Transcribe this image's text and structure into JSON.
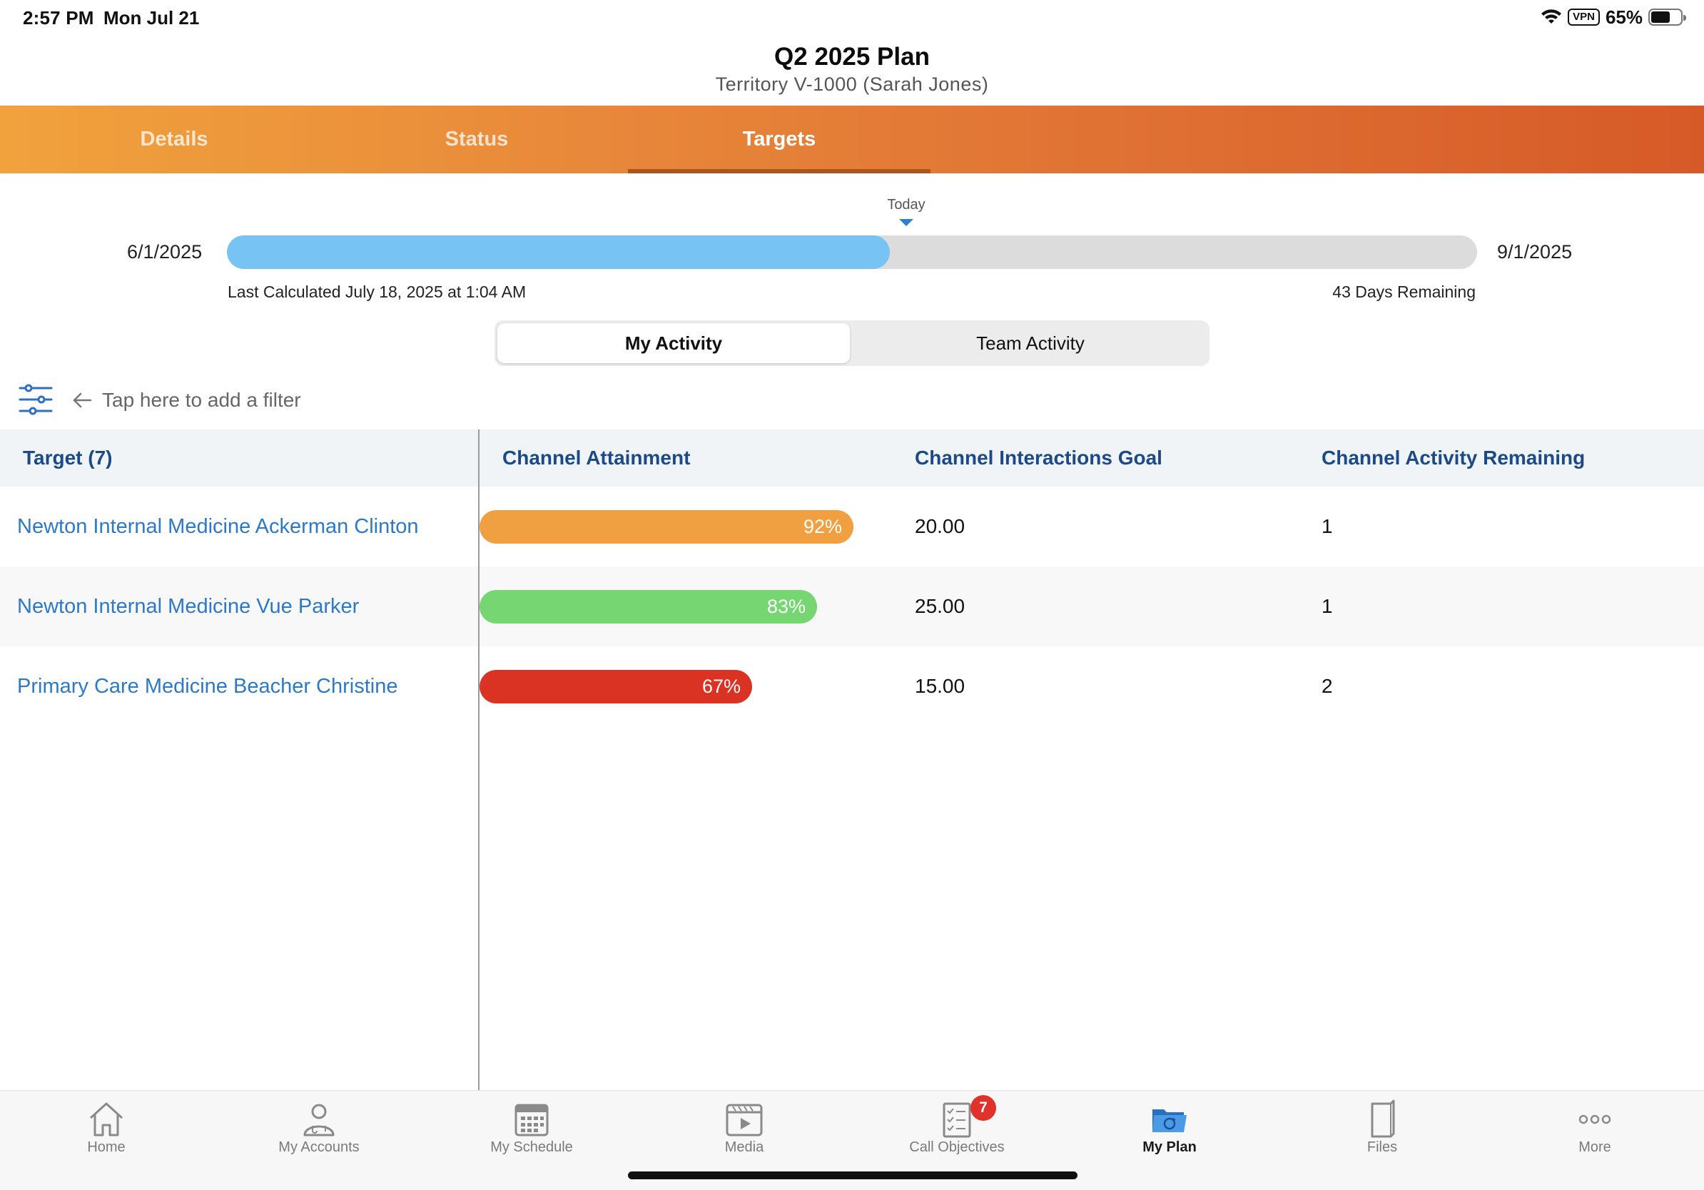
{
  "status_bar": {
    "time": "2:57 PM",
    "date": "Mon Jul 21",
    "vpn": "VPN",
    "battery": "65%",
    "battery_level": 0.65,
    "wifi_icon": "wifi-icon",
    "battery_icon": "battery-icon"
  },
  "header": {
    "title": "Q2 2025 Plan",
    "subtitle": "Territory V-1000 (Sarah Jones)"
  },
  "tabs": [
    {
      "label": "Details",
      "active": false
    },
    {
      "label": "Status",
      "active": false
    },
    {
      "label": "Targets",
      "active": true
    }
  ],
  "timeline": {
    "start_date": "6/1/2025",
    "end_date": "9/1/2025",
    "today_label": "Today",
    "progress_fraction": 0.53,
    "last_calculated": "Last Calculated July 18, 2025 at 1:04 AM",
    "days_remaining": "43 Days Remaining"
  },
  "segment": {
    "options": [
      "My Activity",
      "Team Activity"
    ],
    "selected": "My Activity"
  },
  "filter": {
    "hint": "Tap here to add a filter",
    "filter_icon": "sliders-icon",
    "arrow_icon": "arrow-left-icon"
  },
  "table": {
    "headers": {
      "target": "Target (7)",
      "attainment": "Channel Attainment",
      "goal": "Channel Interactions Goal",
      "remaining": "Channel Activity Remaining"
    },
    "rows": [
      {
        "name": "Newton Internal Medicine Ackerman Clinton",
        "attainment": "92%",
        "attainment_value": 92,
        "color": "#f0a040",
        "goal": "20.00",
        "remaining": "1"
      },
      {
        "name": "Newton Internal Medicine Vue Parker",
        "attainment": "83%",
        "attainment_value": 83,
        "color": "#76d672",
        "goal": "25.00",
        "remaining": "1"
      },
      {
        "name": "Primary Care Medicine Beacher Christine",
        "attainment": "67%",
        "attainment_value": 67,
        "color": "#db3323",
        "goal": "15.00",
        "remaining": "2"
      }
    ]
  },
  "bottom_nav": [
    {
      "label": "Home",
      "icon": "home-icon",
      "active": false
    },
    {
      "label": "My Accounts",
      "icon": "person-icon",
      "active": false
    },
    {
      "label": "My Schedule",
      "icon": "calendar-icon",
      "active": false
    },
    {
      "label": "Media",
      "icon": "media-icon",
      "active": false
    },
    {
      "label": "Call Objectives",
      "icon": "checklist-icon",
      "active": false,
      "badge": "7"
    },
    {
      "label": "My Plan",
      "icon": "folder-icon",
      "active": true
    },
    {
      "label": "Files",
      "icon": "file-icon",
      "active": false
    },
    {
      "label": "More",
      "icon": "more-icon",
      "active": false
    }
  ],
  "colors": {
    "tab_gradient_start": "#f1a23d",
    "tab_gradient_end": "#d65a27",
    "progress_fill": "#77c3f3",
    "header_text": "#1b4a86",
    "link": "#2d79c9"
  }
}
